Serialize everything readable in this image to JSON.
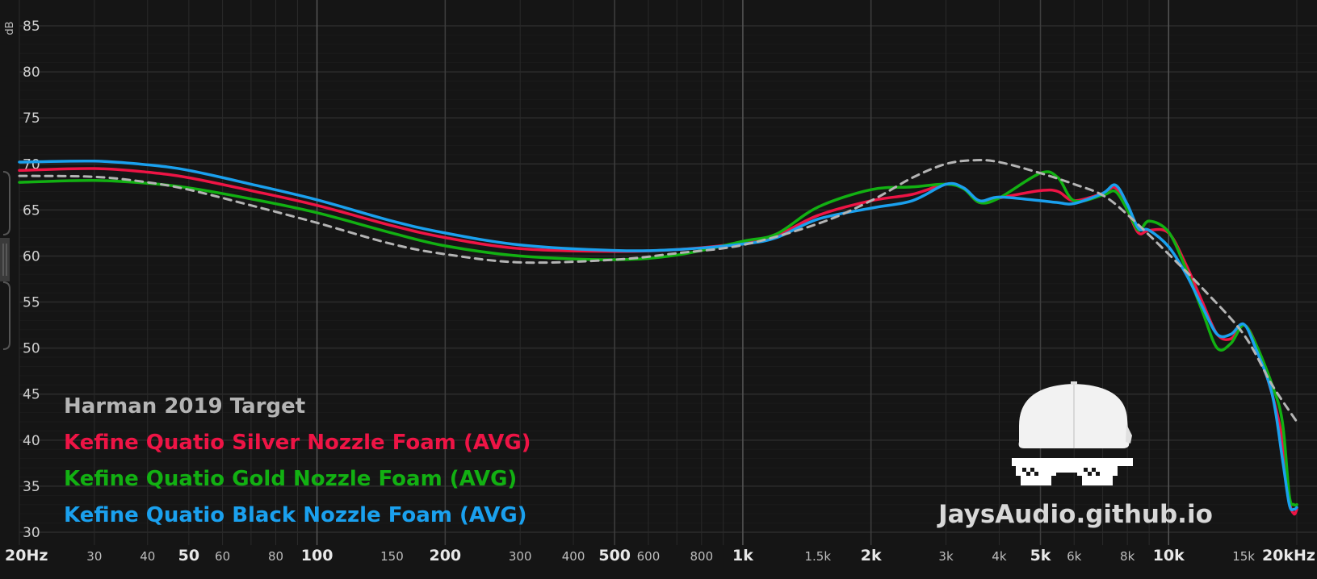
{
  "chart_data": {
    "type": "line",
    "x_scale": "log",
    "xlim": [
      20,
      20000
    ],
    "ylim": [
      30,
      85
    ],
    "ylabel": "dB",
    "x_ticks": [
      {
        "v": 20,
        "label": "20Hz",
        "major": true
      },
      {
        "v": 30,
        "label": "30"
      },
      {
        "v": 40,
        "label": "40"
      },
      {
        "v": 50,
        "label": "50",
        "major": true
      },
      {
        "v": 60,
        "label": "60"
      },
      {
        "v": 80,
        "label": "80"
      },
      {
        "v": 100,
        "label": "100",
        "major": true
      },
      {
        "v": 150,
        "label": "150"
      },
      {
        "v": 200,
        "label": "200",
        "major": true
      },
      {
        "v": 300,
        "label": "300"
      },
      {
        "v": 400,
        "label": "400"
      },
      {
        "v": 500,
        "label": "500",
        "major": true
      },
      {
        "v": 600,
        "label": "600"
      },
      {
        "v": 800,
        "label": "800"
      },
      {
        "v": 1000,
        "label": "1k",
        "major": true
      },
      {
        "v": 1500,
        "label": "1.5k"
      },
      {
        "v": 2000,
        "label": "2k",
        "major": true
      },
      {
        "v": 3000,
        "label": "3k"
      },
      {
        "v": 4000,
        "label": "4k"
      },
      {
        "v": 5000,
        "label": "5k",
        "major": true
      },
      {
        "v": 6000,
        "label": "6k"
      },
      {
        "v": 8000,
        "label": "8k"
      },
      {
        "v": 10000,
        "label": "10k",
        "major": true
      },
      {
        "v": 15000,
        "label": "15k"
      },
      {
        "v": 20000,
        "label": "20kHz",
        "major": true
      }
    ],
    "y_ticks": [
      30,
      35,
      40,
      45,
      50,
      55,
      60,
      65,
      70,
      75,
      80,
      85
    ],
    "grid": true,
    "legend_position": "bottom-left",
    "series": [
      {
        "name": "Harman 2019 Target",
        "color": "#b4b4b4",
        "dashed": true,
        "points": [
          [
            20,
            68.7
          ],
          [
            30,
            68.6
          ],
          [
            40,
            68.0
          ],
          [
            50,
            67.2
          ],
          [
            70,
            65.5
          ],
          [
            100,
            63.6
          ],
          [
            150,
            61.3
          ],
          [
            200,
            60.2
          ],
          [
            300,
            59.3
          ],
          [
            500,
            59.6
          ],
          [
            700,
            60.3
          ],
          [
            1000,
            61.2
          ],
          [
            1500,
            63.5
          ],
          [
            2000,
            66.0
          ],
          [
            2500,
            68.5
          ],
          [
            3000,
            70.0
          ],
          [
            3500,
            70.4
          ],
          [
            4000,
            70.2
          ],
          [
            5000,
            69.0
          ],
          [
            6000,
            67.8
          ],
          [
            7000,
            66.6
          ],
          [
            8000,
            64.5
          ],
          [
            10000,
            60.2
          ],
          [
            12000,
            56.5
          ],
          [
            15000,
            51.5
          ],
          [
            17500,
            46.0
          ],
          [
            20000,
            42.0
          ]
        ]
      },
      {
        "name": "Kefine Quatio Silver Nozzle Foam (AVG)",
        "color": "#ee1445",
        "dashed": false,
        "points": [
          [
            20,
            69.3
          ],
          [
            30,
            69.5
          ],
          [
            40,
            69.1
          ],
          [
            50,
            68.5
          ],
          [
            70,
            67.1
          ],
          [
            100,
            65.5
          ],
          [
            150,
            63.3
          ],
          [
            200,
            62.0
          ],
          [
            300,
            60.8
          ],
          [
            500,
            60.5
          ],
          [
            700,
            60.7
          ],
          [
            1000,
            61.4
          ],
          [
            1200,
            62.2
          ],
          [
            1500,
            64.4
          ],
          [
            2000,
            66.0
          ],
          [
            2500,
            66.7
          ],
          [
            3000,
            67.8
          ],
          [
            3300,
            67.4
          ],
          [
            3600,
            65.8
          ],
          [
            4000,
            66.3
          ],
          [
            5000,
            67.1
          ],
          [
            5500,
            67.0
          ],
          [
            6000,
            66.0
          ],
          [
            7000,
            66.8
          ],
          [
            7500,
            67.4
          ],
          [
            8000,
            65.0
          ],
          [
            8500,
            62.5
          ],
          [
            9000,
            62.8
          ],
          [
            10000,
            62.5
          ],
          [
            11000,
            59.0
          ],
          [
            12000,
            55.0
          ],
          [
            13000,
            51.5
          ],
          [
            14000,
            51.0
          ],
          [
            15000,
            52.5
          ],
          [
            16000,
            50.5
          ],
          [
            17500,
            45.0
          ],
          [
            18500,
            40.0
          ],
          [
            19200,
            33.5
          ],
          [
            19700,
            32.0
          ],
          [
            20000,
            32.5
          ]
        ]
      },
      {
        "name": "Kefine Quatio Gold Nozzle Foam (AVG)",
        "color": "#12b012",
        "dashed": false,
        "points": [
          [
            20,
            68.0
          ],
          [
            30,
            68.2
          ],
          [
            40,
            67.9
          ],
          [
            50,
            67.4
          ],
          [
            70,
            66.2
          ],
          [
            100,
            64.7
          ],
          [
            150,
            62.5
          ],
          [
            200,
            61.1
          ],
          [
            300,
            60.0
          ],
          [
            500,
            59.6
          ],
          [
            700,
            60.1
          ],
          [
            1000,
            61.6
          ],
          [
            1200,
            62.4
          ],
          [
            1500,
            65.3
          ],
          [
            2000,
            67.2
          ],
          [
            2500,
            67.5
          ],
          [
            3000,
            67.8
          ],
          [
            3300,
            67.3
          ],
          [
            3600,
            65.8
          ],
          [
            4000,
            66.3
          ],
          [
            5000,
            69.0
          ],
          [
            5500,
            68.5
          ],
          [
            6000,
            66.0
          ],
          [
            7000,
            66.6
          ],
          [
            7500,
            67.0
          ],
          [
            8000,
            65.0
          ],
          [
            8500,
            62.8
          ],
          [
            9000,
            63.8
          ],
          [
            10000,
            62.6
          ],
          [
            11000,
            58.5
          ],
          [
            12000,
            54.0
          ],
          [
            13000,
            50.0
          ],
          [
            14000,
            50.5
          ],
          [
            15000,
            52.5
          ],
          [
            16000,
            50.5
          ],
          [
            17500,
            46.0
          ],
          [
            18500,
            42.0
          ],
          [
            19200,
            34.0
          ],
          [
            19700,
            33.0
          ],
          [
            20000,
            33.0
          ]
        ]
      },
      {
        "name": "Kefine Quatio Black Nozzle Foam (AVG)",
        "color": "#1aa0ee",
        "dashed": false,
        "points": [
          [
            20,
            70.2
          ],
          [
            30,
            70.3
          ],
          [
            40,
            69.9
          ],
          [
            50,
            69.3
          ],
          [
            70,
            67.8
          ],
          [
            100,
            66.1
          ],
          [
            150,
            63.8
          ],
          [
            200,
            62.5
          ],
          [
            300,
            61.2
          ],
          [
            500,
            60.6
          ],
          [
            700,
            60.7
          ],
          [
            1000,
            61.3
          ],
          [
            1200,
            62.0
          ],
          [
            1500,
            64.0
          ],
          [
            2000,
            65.2
          ],
          [
            2500,
            66.0
          ],
          [
            3000,
            67.8
          ],
          [
            3300,
            67.4
          ],
          [
            3600,
            66.0
          ],
          [
            4000,
            66.4
          ],
          [
            5000,
            66.0
          ],
          [
            5500,
            65.8
          ],
          [
            6000,
            65.7
          ],
          [
            7000,
            66.8
          ],
          [
            7500,
            67.7
          ],
          [
            8000,
            65.6
          ],
          [
            8500,
            63.0
          ],
          [
            9000,
            62.8
          ],
          [
            10000,
            61.0
          ],
          [
            11000,
            58.0
          ],
          [
            12000,
            54.5
          ],
          [
            13000,
            51.5
          ],
          [
            14000,
            51.5
          ],
          [
            15000,
            52.6
          ],
          [
            16000,
            50.0
          ],
          [
            17500,
            45.0
          ],
          [
            18500,
            38.0
          ],
          [
            19200,
            33.0
          ],
          [
            19700,
            32.5
          ],
          [
            20000,
            32.7
          ]
        ]
      }
    ]
  },
  "legend": [
    {
      "label": "Harman 2019 Target",
      "color": "#b4b4b4"
    },
    {
      "label": "Kefine Quatio Silver Nozzle Foam (AVG)",
      "color": "#ee1445"
    },
    {
      "label": "Kefine Quatio Gold Nozzle Foam (AVG)",
      "color": "#12b012"
    },
    {
      "label": "Kefine Quatio Black Nozzle Foam (AVG)",
      "color": "#1aa0ee"
    }
  ],
  "watermark": {
    "text": "JaysAudio.github.io"
  }
}
